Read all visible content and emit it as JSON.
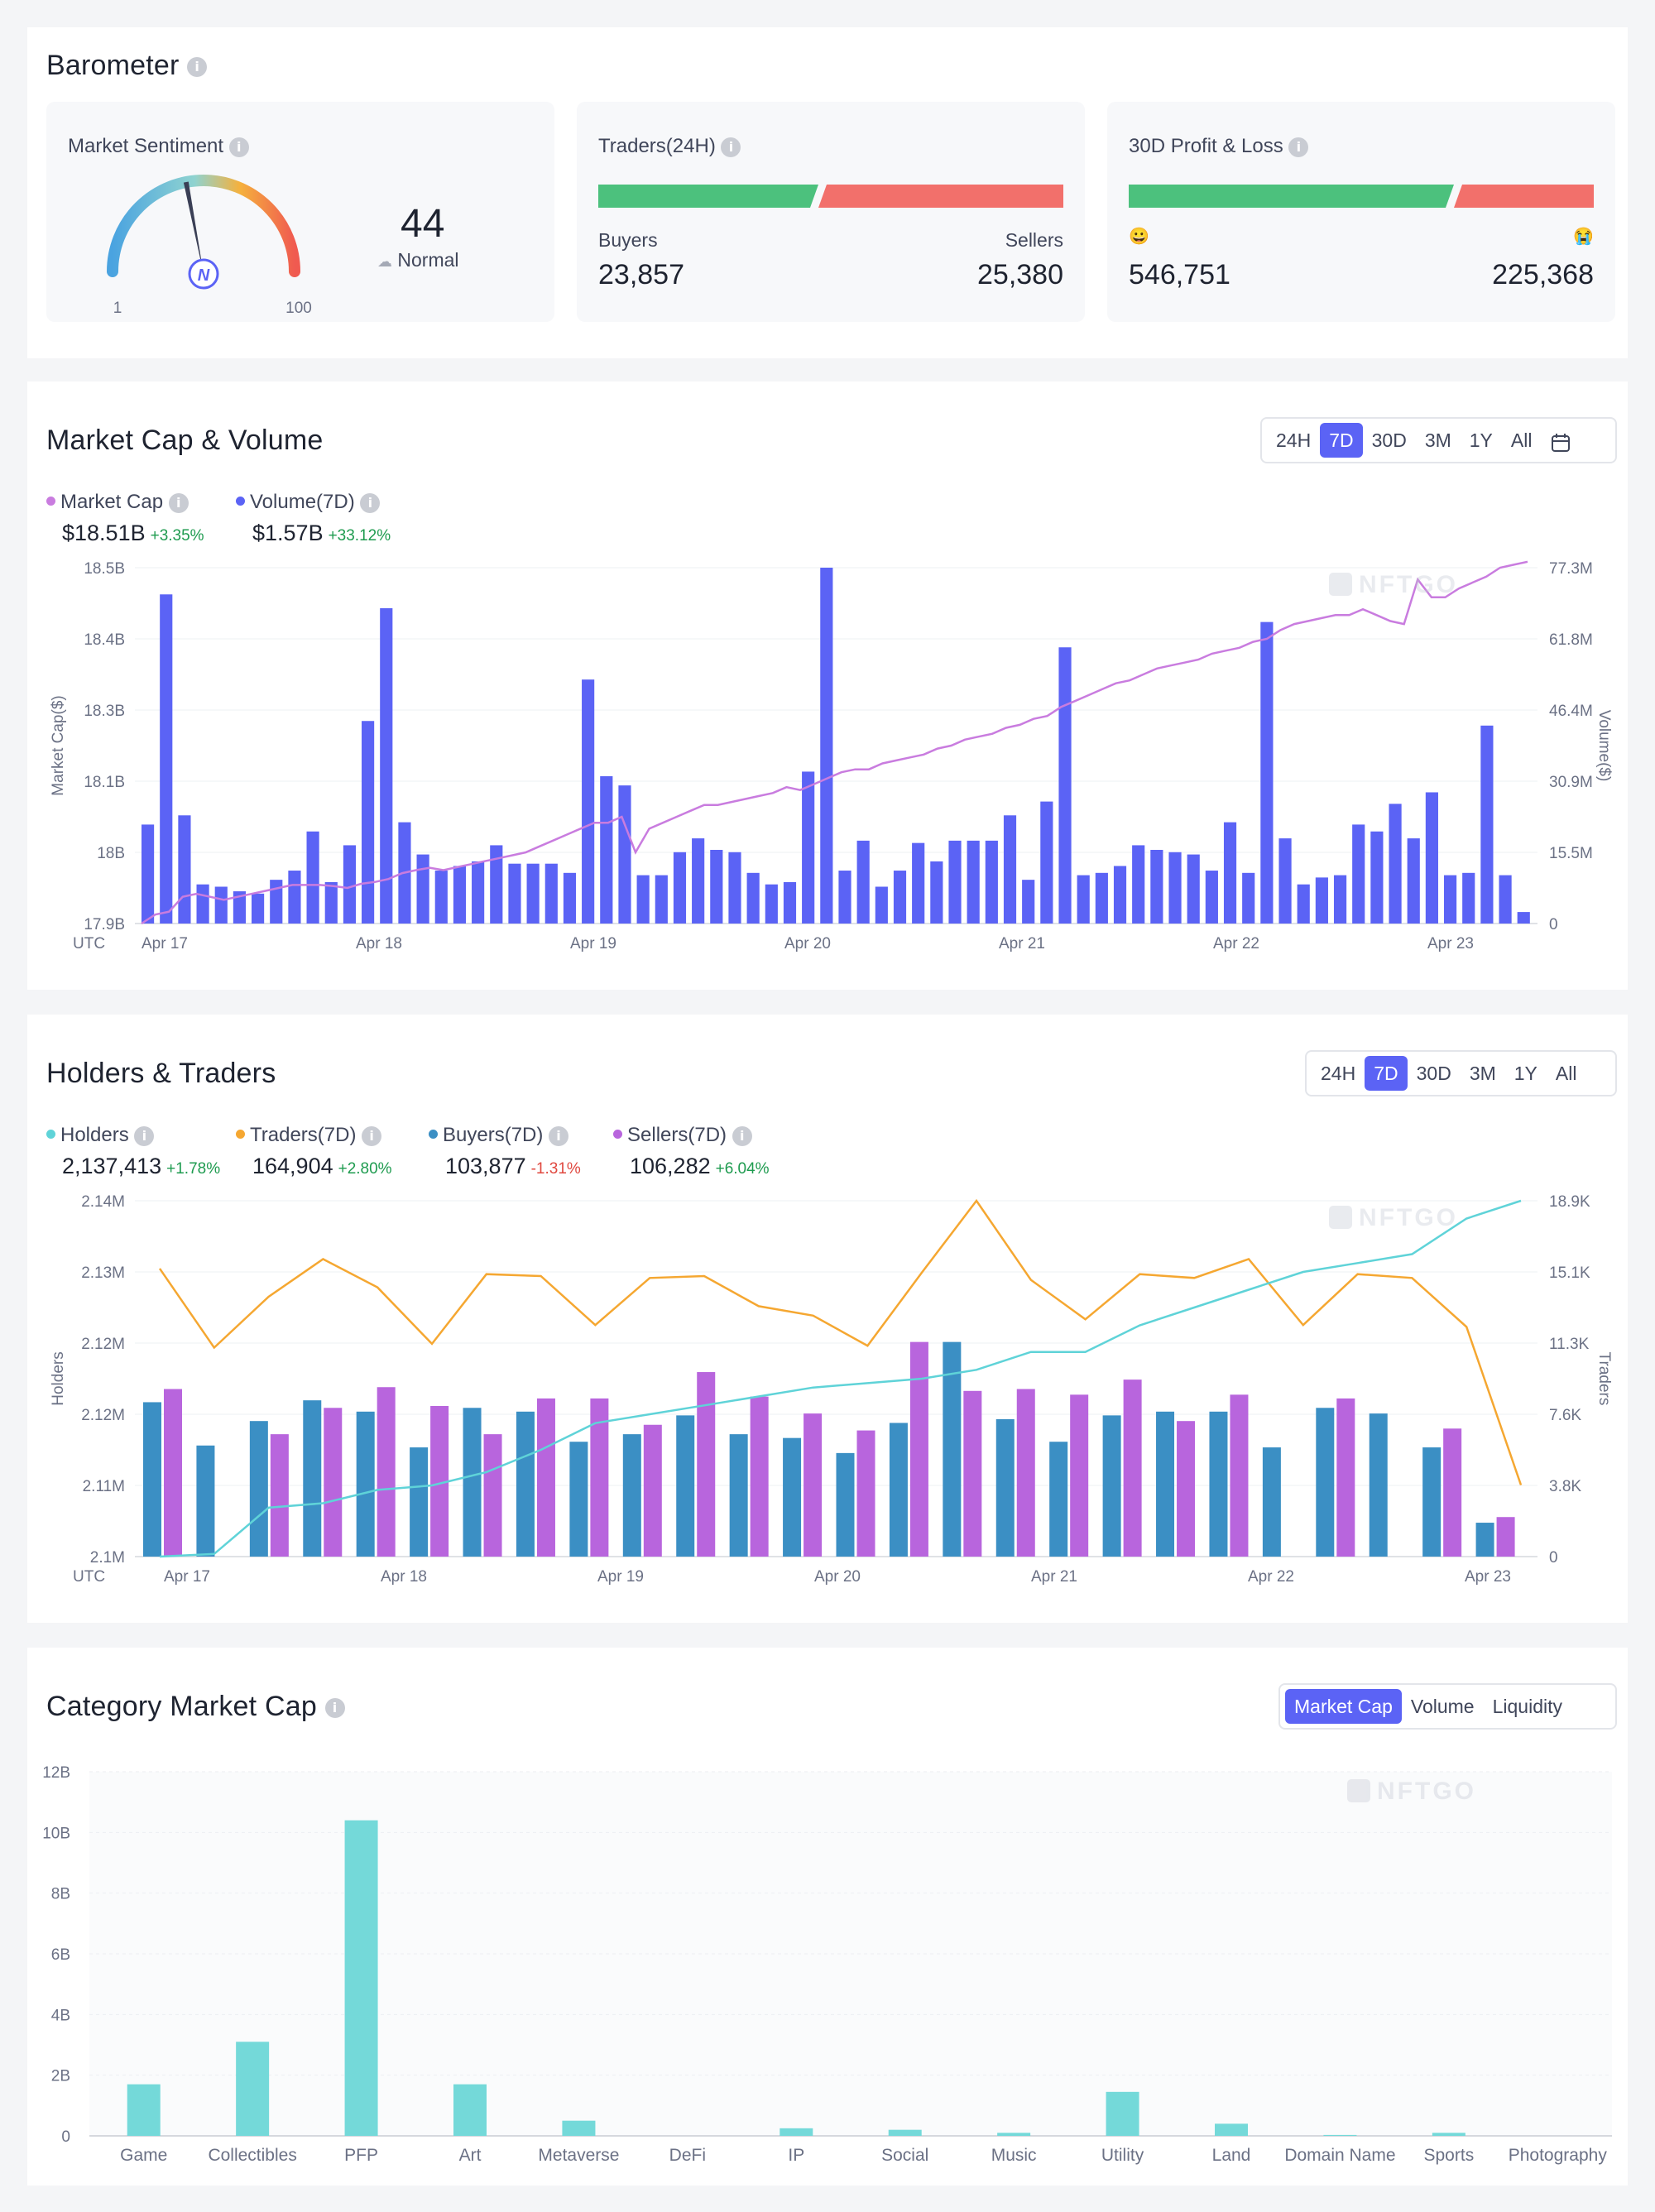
{
  "barometer": {
    "title": "Barometer",
    "sentiment": {
      "label": "Market Sentiment",
      "value": "44",
      "status": "Normal",
      "min": "1",
      "max": "100",
      "fraction": 0.44
    },
    "traders24h": {
      "label": "Traders(24H)",
      "buyers_label": "Buyers",
      "sellers_label": "Sellers",
      "buyers": "23,857",
      "sellers": "25,380"
    },
    "pnl30d": {
      "label": "30D Profit & Loss",
      "profit_emoji": "😀",
      "loss_emoji": "😭",
      "profit": "546,751",
      "loss": "225,368"
    },
    "colors": {
      "green": "#4cc17d",
      "red": "#f2706b"
    }
  },
  "mcv": {
    "title": "Market Cap & Volume",
    "ranges": [
      "24H",
      "7D",
      "30D",
      "3M",
      "1Y",
      "All"
    ],
    "active_range": "7D",
    "legend": [
      {
        "name": "Market Cap",
        "value": "$18.51B",
        "change": "+3.35%",
        "dir": "up",
        "color": "#c97cdf"
      },
      {
        "name": "Volume(7D)",
        "value": "$1.57B",
        "change": "+33.12%",
        "dir": "up",
        "color": "#5b63f5"
      }
    ],
    "watermark": "NFTGO"
  },
  "ht": {
    "title": "Holders & Traders",
    "ranges": [
      "24H",
      "7D",
      "30D",
      "3M",
      "1Y",
      "All"
    ],
    "active_range": "7D",
    "legend": [
      {
        "name": "Holders",
        "value": "2,137,413",
        "change": "+1.78%",
        "dir": "up",
        "color": "#5fd3d8"
      },
      {
        "name": "Traders(7D)",
        "value": "164,904",
        "change": "+2.80%",
        "dir": "up",
        "color": "#f5a731"
      },
      {
        "name": "Buyers(7D)",
        "value": "103,877",
        "change": "-1.31%",
        "dir": "down",
        "color": "#3b8fc4"
      },
      {
        "name": "Sellers(7D)",
        "value": "106,282",
        "change": "+6.04%",
        "dir": "up",
        "color": "#b865dd"
      }
    ],
    "watermark": "NFTGO"
  },
  "cat": {
    "title": "Category Market Cap",
    "tabs": [
      "Market Cap",
      "Volume",
      "Liquidity"
    ],
    "active_tab": "Market Cap",
    "watermark": "NFTGO"
  },
  "chart_data": [
    {
      "type": "bar",
      "title": "Market Cap & Volume",
      "ylabel": "Market Cap($)",
      "y2label": "Volume($)",
      "utc_label": "UTC",
      "x_tick_labels": [
        "Apr 17",
        "Apr 18",
        "Apr 19",
        "Apr 20",
        "Apr 21",
        "Apr 22",
        "Apr 23"
      ],
      "y_ticks": [
        "18.5B",
        "18.4B",
        "18.3B",
        "18.1B",
        "18B",
        "17.9B"
      ],
      "y2_ticks": [
        "77.3M",
        "61.8M",
        "46.4M",
        "30.9M",
        "15.5M",
        "0"
      ],
      "ylim": [
        17.9,
        18.5
      ],
      "y2lim": [
        0,
        77.3
      ],
      "series": [
        {
          "name": "Volume(7D)",
          "kind": "bar",
          "unit": "M",
          "color": "#5b63f5",
          "values": [
            21.5,
            71.5,
            23.5,
            8.5,
            8,
            7,
            6.5,
            9.5,
            11.5,
            20,
            9,
            17,
            44,
            68.5,
            22,
            15,
            11.5,
            12.5,
            13.5,
            17,
            13,
            13,
            13,
            11,
            53,
            32,
            30,
            10.5,
            10.5,
            15.5,
            18.5,
            16,
            15.5,
            11,
            8.5,
            9,
            33,
            77.3,
            11.5,
            18,
            8,
            11.5,
            17.5,
            13.5,
            18,
            18,
            18,
            23.5,
            9.5,
            26.5,
            60,
            10.5,
            11,
            12.5,
            17,
            16,
            15.5,
            15,
            11.5,
            22,
            11,
            65.5,
            18.5,
            8.5,
            10,
            10.5,
            21.5,
            20,
            26,
            18.5,
            28.5,
            10.5,
            11,
            43,
            10.5,
            2.5
          ]
        },
        {
          "name": "Market Cap",
          "kind": "line",
          "unit": "B",
          "color": "#c97cdf",
          "values": [
            17.9,
            17.915,
            17.92,
            17.945,
            17.95,
            17.945,
            17.94,
            17.945,
            17.95,
            17.955,
            17.96,
            17.965,
            17.965,
            17.965,
            17.963,
            17.96,
            17.967,
            17.97,
            17.975,
            17.985,
            17.99,
            17.994,
            17.99,
            17.995,
            18.0,
            18.005,
            18.01,
            18.015,
            18.02,
            18.03,
            18.04,
            18.05,
            18.06,
            18.07,
            18.07,
            18.08,
            18.02,
            18.06,
            18.07,
            18.08,
            18.09,
            18.1,
            18.1,
            18.105,
            18.11,
            18.115,
            18.12,
            18.13,
            18.125,
            18.135,
            18.145,
            18.155,
            18.16,
            18.16,
            18.17,
            18.175,
            18.18,
            18.185,
            18.195,
            18.2,
            18.21,
            18.215,
            18.22,
            18.23,
            18.235,
            18.245,
            18.25,
            18.265,
            18.275,
            18.285,
            18.295,
            18.305,
            18.31,
            18.32,
            18.33,
            18.335,
            18.34,
            18.345,
            18.355,
            18.36,
            18.365,
            18.375,
            18.38,
            18.395,
            18.405,
            18.41,
            18.415,
            18.42,
            18.42,
            18.43,
            18.42,
            18.41,
            18.405,
            18.48,
            18.45,
            18.45,
            18.465,
            18.475,
            18.485,
            18.5,
            18.505,
            18.51
          ]
        }
      ]
    },
    {
      "type": "bar",
      "title": "Holders & Traders",
      "ylabel": "Holders",
      "y2label": "Traders",
      "utc_label": "UTC",
      "x_tick_labels": [
        "Apr 17",
        "Apr 18",
        "Apr 19",
        "Apr 20",
        "Apr 21",
        "Apr 22",
        "Apr 23"
      ],
      "y_ticks": [
        "2.14M",
        "2.13M",
        "2.12M",
        "2.12M",
        "2.11M",
        "2.1M"
      ],
      "y2_ticks": [
        "18.9K",
        "15.1K",
        "11.3K",
        "7.6K",
        "3.8K",
        "0"
      ],
      "ylim": [
        2.1,
        2.14
      ],
      "y2lim": [
        0,
        18.9
      ],
      "series": [
        {
          "name": "Buyers(7D)",
          "kind": "bar",
          "unit": "K",
          "color": "#3b8fc4",
          "values": [
            8.2,
            5.9,
            7.2,
            8.3,
            7.7,
            5.8,
            7.9,
            7.7,
            6.1,
            6.5,
            7.5,
            6.5,
            6.3,
            5.5,
            7.1,
            11.4,
            7.3,
            6.1,
            7.5,
            7.7,
            7.7,
            5.8,
            7.9,
            7.6,
            5.8,
            1.8
          ]
        },
        {
          "name": "Sellers(7D)",
          "kind": "bar",
          "unit": "K",
          "color": "#b865dd",
          "values": [
            8.9,
            6.5,
            7.9,
            9.0,
            8.0,
            6.5,
            8.4,
            8.4,
            7.0,
            9.8,
            8.5,
            7.6,
            6.7,
            11.4,
            8.8,
            8.9,
            8.6,
            9.4,
            7.2,
            8.6,
            8.4,
            6.8,
            2.1
          ]
        },
        {
          "name": "Holders",
          "kind": "line",
          "unit": "M",
          "color": "#5fd3d8",
          "values": [
            2.1,
            2.1003,
            2.1055,
            2.106,
            2.1075,
            2.108,
            2.1095,
            2.112,
            2.115,
            2.116,
            2.117,
            2.118,
            2.119,
            2.1195,
            2.12,
            2.121,
            2.123,
            2.123,
            2.126,
            2.128,
            2.13,
            2.132,
            2.133,
            2.134,
            2.138,
            2.14
          ]
        },
        {
          "name": "Traders(7D)",
          "kind": "line",
          "unit": "K",
          "color": "#f5a731",
          "values": [
            15.3,
            11.1,
            13.8,
            15.8,
            14.3,
            11.3,
            15.0,
            14.9,
            12.3,
            14.8,
            14.9,
            13.3,
            12.8,
            11.2,
            15.1,
            18.9,
            14.7,
            12.6,
            15.0,
            14.8,
            15.8,
            12.3,
            15.0,
            14.8,
            12.2,
            3.8
          ]
        }
      ]
    },
    {
      "type": "bar",
      "title": "Category Market Cap",
      "categories": [
        "Game",
        "Collectibles",
        "PFP",
        "Art",
        "Metaverse",
        "DeFi",
        "IP",
        "Social",
        "Music",
        "Utility",
        "Land",
        "Domain Name",
        "Sports",
        "Photography"
      ],
      "values": [
        1.7,
        3.1,
        10.4,
        1.7,
        0.5,
        0.0,
        0.25,
        0.2,
        0.1,
        1.45,
        0.4,
        0.03,
        0.1,
        0.0
      ],
      "unit": "B",
      "y_ticks": [
        "12B",
        "10B",
        "8B",
        "6B",
        "4B",
        "2B",
        "0"
      ],
      "ylim": [
        0,
        12
      ],
      "color": "#74d9d9"
    }
  ]
}
